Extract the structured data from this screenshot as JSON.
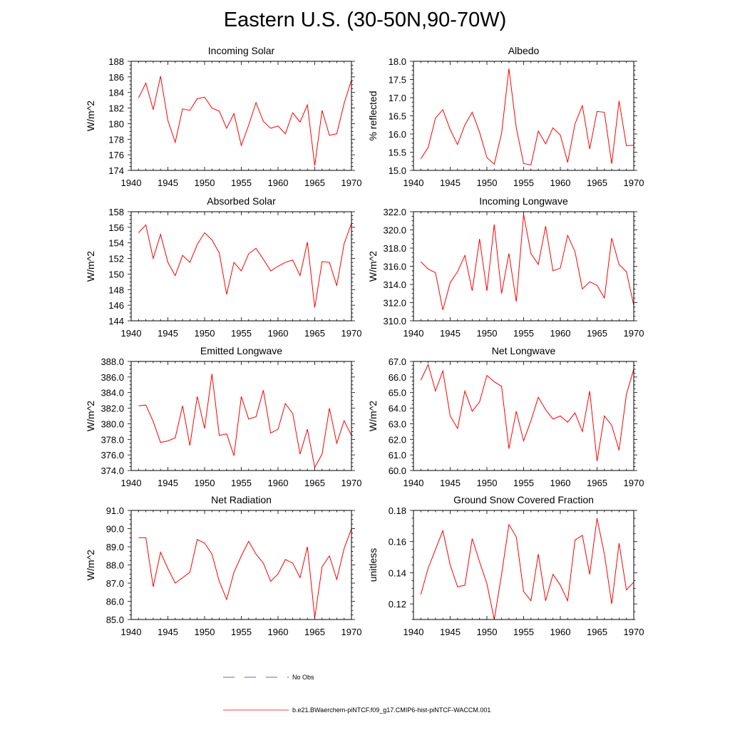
{
  "title": "Eastern U.S. (30-50N,90-70W)",
  "colors": {
    "model": "#ff0000",
    "obs": "#3333aa",
    "axis": "#000000"
  },
  "legend": {
    "obs_label": "No Obs",
    "model_label": "b.e21.BWaerchem-piNTCF.f09_g17.CMIP6-hist-piNTCF-WACCM.001"
  },
  "chart_data": [
    {
      "type": "line",
      "title": "Incoming Solar",
      "ylabel": "W/m^2",
      "xlim": [
        1940,
        1970
      ],
      "ylim": [
        174,
        188
      ],
      "xticks": [
        1940,
        1945,
        1950,
        1955,
        1960,
        1965,
        1970
      ],
      "yticks": [
        174,
        176,
        178,
        180,
        182,
        184,
        186,
        188
      ],
      "ytick_decimals": 0,
      "x": [
        1941,
        1942,
        1943,
        1944,
        1945,
        1946,
        1947,
        1948,
        1949,
        1950,
        1951,
        1952,
        1953,
        1954,
        1955,
        1956,
        1957,
        1958,
        1959,
        1960,
        1961,
        1962,
        1963,
        1964,
        1965,
        1966,
        1967,
        1968,
        1969,
        1970
      ],
      "series": [
        {
          "values": [
            183.3,
            185.2,
            181.8,
            186.1,
            180.4,
            177.6,
            181.9,
            181.7,
            183.2,
            183.4,
            182.0,
            181.6,
            179.4,
            181.3,
            177.2,
            179.8,
            182.7,
            180.3,
            179.4,
            179.7,
            178.7,
            181.4,
            180.2,
            182.4,
            174.6,
            181.7,
            178.5,
            178.7,
            182.6,
            185.6
          ]
        }
      ]
    },
    {
      "type": "line",
      "title": "Albedo",
      "ylabel": "% reflected",
      "xlim": [
        1940,
        1970
      ],
      "ylim": [
        15.0,
        18.0
      ],
      "xticks": [
        1940,
        1945,
        1950,
        1955,
        1960,
        1965,
        1970
      ],
      "yticks": [
        15.0,
        15.5,
        16.0,
        16.5,
        17.0,
        17.5,
        18.0
      ],
      "ytick_decimals": 1,
      "x": [
        1941,
        1942,
        1943,
        1944,
        1945,
        1946,
        1947,
        1948,
        1949,
        1950,
        1951,
        1952,
        1953,
        1954,
        1955,
        1956,
        1957,
        1958,
        1959,
        1960,
        1961,
        1962,
        1963,
        1964,
        1965,
        1966,
        1967,
        1968,
        1969,
        1970
      ],
      "series": [
        {
          "values": [
            15.32,
            15.63,
            16.44,
            16.67,
            16.12,
            15.71,
            16.25,
            16.6,
            16.05,
            15.35,
            15.17,
            16.02,
            17.8,
            16.17,
            15.19,
            15.15,
            16.08,
            15.73,
            16.17,
            15.97,
            15.22,
            16.28,
            16.78,
            15.59,
            16.62,
            16.6,
            15.18,
            16.91,
            15.68,
            15.69
          ]
        }
      ]
    },
    {
      "type": "line",
      "title": "Absorbed Solar",
      "ylabel": "W/m^2",
      "xlim": [
        1940,
        1970
      ],
      "ylim": [
        144,
        158
      ],
      "xticks": [
        1940,
        1945,
        1950,
        1955,
        1960,
        1965,
        1970
      ],
      "yticks": [
        144,
        146,
        148,
        150,
        152,
        154,
        156,
        158
      ],
      "ytick_decimals": 0,
      "x": [
        1941,
        1942,
        1943,
        1944,
        1945,
        1946,
        1947,
        1948,
        1949,
        1950,
        1951,
        1952,
        1953,
        1954,
        1955,
        1956,
        1957,
        1958,
        1959,
        1960,
        1961,
        1962,
        1963,
        1964,
        1965,
        1966,
        1967,
        1968,
        1969,
        1970
      ],
      "series": [
        {
          "values": [
            155.3,
            156.3,
            152.0,
            155.1,
            151.5,
            149.8,
            152.4,
            151.5,
            153.8,
            155.3,
            154.4,
            152.7,
            147.4,
            151.5,
            150.4,
            152.6,
            153.3,
            151.9,
            150.4,
            151.0,
            151.5,
            151.8,
            149.8,
            154.1,
            145.7,
            151.6,
            151.5,
            148.5,
            153.9,
            156.5
          ]
        }
      ]
    },
    {
      "type": "line",
      "title": "Incoming Longwave",
      "ylabel": "W/m^2",
      "xlim": [
        1940,
        1970
      ],
      "ylim": [
        310.0,
        322.0
      ],
      "xticks": [
        1940,
        1945,
        1950,
        1955,
        1960,
        1965,
        1970
      ],
      "yticks": [
        310.0,
        312.0,
        314.0,
        316.0,
        318.0,
        320.0,
        322.0
      ],
      "ytick_decimals": 1,
      "x": [
        1941,
        1942,
        1943,
        1944,
        1945,
        1946,
        1947,
        1948,
        1949,
        1950,
        1951,
        1952,
        1953,
        1954,
        1955,
        1956,
        1957,
        1958,
        1959,
        1960,
        1961,
        1962,
        1963,
        1964,
        1965,
        1966,
        1967,
        1968,
        1969,
        1970
      ],
      "series": [
        {
          "values": [
            316.5,
            315.7,
            315.3,
            311.2,
            314.2,
            315.4,
            317.2,
            313.3,
            319.0,
            313.3,
            320.6,
            313.0,
            317.4,
            312.1,
            321.7,
            317.4,
            316.2,
            320.4,
            315.5,
            315.8,
            319.4,
            317.6,
            313.5,
            314.3,
            313.9,
            312.5,
            319.1,
            316.2,
            315.4,
            311.7
          ]
        }
      ]
    },
    {
      "type": "line",
      "title": "Emitted Longwave",
      "ylabel": "W/m^2",
      "xlim": [
        1940,
        1970
      ],
      "ylim": [
        374.0,
        388.0
      ],
      "xticks": [
        1940,
        1945,
        1950,
        1955,
        1960,
        1965,
        1970
      ],
      "yticks": [
        374.0,
        376.0,
        378.0,
        380.0,
        382.0,
        384.0,
        386.0,
        388.0
      ],
      "ytick_decimals": 1,
      "x": [
        1941,
        1942,
        1943,
        1944,
        1945,
        1946,
        1947,
        1948,
        1949,
        1950,
        1951,
        1952,
        1953,
        1954,
        1955,
        1956,
        1957,
        1958,
        1959,
        1960,
        1961,
        1962,
        1963,
        1964,
        1965,
        1966,
        1967,
        1968,
        1969,
        1970
      ],
      "series": [
        {
          "values": [
            382.3,
            382.4,
            380.3,
            377.6,
            377.8,
            378.2,
            382.3,
            377.2,
            383.5,
            379.4,
            386.4,
            378.5,
            378.7,
            375.9,
            383.5,
            380.6,
            380.9,
            384.3,
            378.8,
            379.3,
            382.6,
            381.3,
            376.1,
            379.3,
            374.4,
            376.1,
            382.0,
            377.5,
            380.4,
            378.5
          ]
        }
      ]
    },
    {
      "type": "line",
      "title": "Net Longwave",
      "ylabel": "W/m^2",
      "xlim": [
        1940,
        1970
      ],
      "ylim": [
        60.0,
        67.0
      ],
      "xticks": [
        1940,
        1945,
        1950,
        1955,
        1960,
        1965,
        1970
      ],
      "yticks": [
        60.0,
        61.0,
        62.0,
        63.0,
        64.0,
        65.0,
        66.0,
        67.0
      ],
      "ytick_decimals": 1,
      "x": [
        1941,
        1942,
        1943,
        1944,
        1945,
        1946,
        1947,
        1948,
        1949,
        1950,
        1951,
        1952,
        1953,
        1954,
        1955,
        1956,
        1957,
        1958,
        1959,
        1960,
        1961,
        1962,
        1963,
        1964,
        1965,
        1966,
        1967,
        1968,
        1969,
        1970
      ],
      "series": [
        {
          "values": [
            65.8,
            66.8,
            65.1,
            66.4,
            63.5,
            62.7,
            65.1,
            63.8,
            64.4,
            66.1,
            65.7,
            65.4,
            61.4,
            63.8,
            61.9,
            63.2,
            64.7,
            63.9,
            63.3,
            63.5,
            63.1,
            63.7,
            62.5,
            65.1,
            60.6,
            63.5,
            62.9,
            61.3,
            64.9,
            66.5
          ]
        }
      ]
    },
    {
      "type": "line",
      "title": "Net Radiation",
      "ylabel": "W/m^2",
      "xlim": [
        1940,
        1970
      ],
      "ylim": [
        85.0,
        91.0
      ],
      "xticks": [
        1940,
        1945,
        1950,
        1955,
        1960,
        1965,
        1970
      ],
      "yticks": [
        85.0,
        86.0,
        87.0,
        88.0,
        89.0,
        90.0,
        91.0
      ],
      "ytick_decimals": 1,
      "x": [
        1941,
        1942,
        1943,
        1944,
        1945,
        1946,
        1947,
        1948,
        1949,
        1950,
        1951,
        1952,
        1953,
        1954,
        1955,
        1956,
        1957,
        1958,
        1959,
        1960,
        1961,
        1962,
        1963,
        1964,
        1965,
        1966,
        1967,
        1968,
        1969,
        1970
      ],
      "series": [
        {
          "values": [
            89.5,
            89.5,
            86.8,
            88.7,
            87.8,
            87.0,
            87.3,
            87.6,
            89.4,
            89.2,
            88.6,
            87.1,
            86.1,
            87.6,
            88.5,
            89.3,
            88.6,
            88.1,
            87.1,
            87.5,
            88.3,
            88.1,
            87.3,
            89.0,
            85.1,
            87.9,
            88.5,
            87.2,
            88.9,
            90.0
          ]
        }
      ]
    },
    {
      "type": "line",
      "title": "Ground Snow Covered Fraction",
      "ylabel": "unitless",
      "xlim": [
        1940,
        1970
      ],
      "ylim": [
        0.11,
        0.18
      ],
      "xticks": [
        1940,
        1945,
        1950,
        1955,
        1960,
        1965,
        1970
      ],
      "yticks": [
        0.12,
        0.14,
        0.16,
        0.18
      ],
      "ytick_decimals": 2,
      "x": [
        1941,
        1942,
        1943,
        1944,
        1945,
        1946,
        1947,
        1948,
        1949,
        1950,
        1951,
        1952,
        1953,
        1954,
        1955,
        1956,
        1957,
        1958,
        1959,
        1960,
        1961,
        1962,
        1963,
        1964,
        1965,
        1966,
        1967,
        1968,
        1969,
        1970
      ],
      "series": [
        {
          "values": [
            0.126,
            0.143,
            0.155,
            0.167,
            0.145,
            0.131,
            0.132,
            0.162,
            0.147,
            0.133,
            0.11,
            0.139,
            0.171,
            0.163,
            0.128,
            0.122,
            0.152,
            0.122,
            0.139,
            0.132,
            0.122,
            0.161,
            0.164,
            0.139,
            0.175,
            0.152,
            0.12,
            0.159,
            0.129,
            0.134
          ]
        }
      ]
    }
  ]
}
